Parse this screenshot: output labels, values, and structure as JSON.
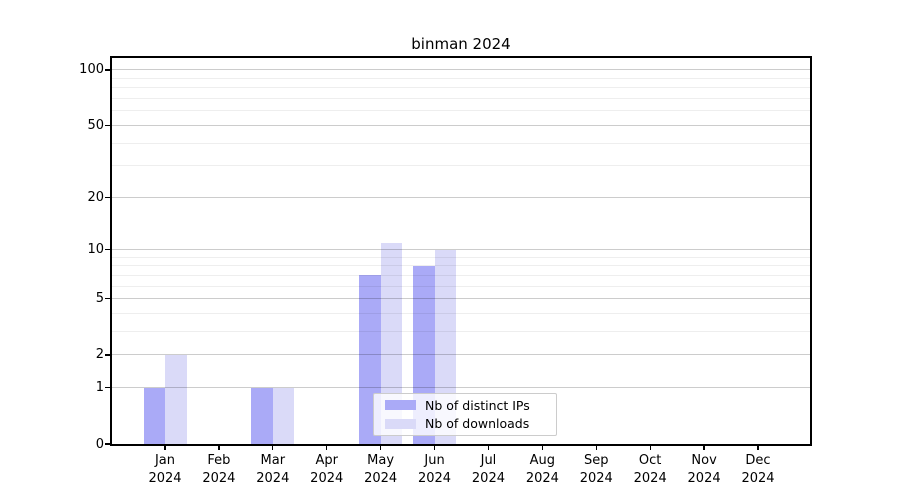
{
  "figure": {
    "title": "binman 2024"
  },
  "chart_data": {
    "type": "bar",
    "title": "binman 2024",
    "months": [
      "Jan",
      "Feb",
      "Mar",
      "Apr",
      "May",
      "Jun",
      "Jul",
      "Aug",
      "Sep",
      "Oct",
      "Nov",
      "Dec"
    ],
    "year": "2024",
    "series": [
      {
        "name": "Nb of distinct IPs",
        "color": "#aaaaf7",
        "values": [
          1,
          0,
          1,
          0,
          7,
          8,
          0,
          0,
          0,
          0,
          0,
          0
        ]
      },
      {
        "name": "Nb of downloads",
        "color": "#dadaf8",
        "values": [
          2,
          0,
          1,
          0,
          11,
          10,
          0,
          0,
          0,
          0,
          0,
          0
        ]
      }
    ],
    "yscale": "log1p",
    "ylim": [
      0,
      100
    ],
    "y_ticks_major": [
      0,
      1,
      2,
      5,
      10,
      20,
      50,
      100
    ],
    "y_ticks_minor": [
      3,
      4,
      6,
      7,
      8,
      9,
      30,
      40,
      60,
      70,
      80,
      90
    ],
    "grid": "horizontal",
    "legend": {
      "position": "bottom-center-inside",
      "entries": [
        "Nb of distinct IPs",
        "Nb of downloads"
      ]
    }
  }
}
